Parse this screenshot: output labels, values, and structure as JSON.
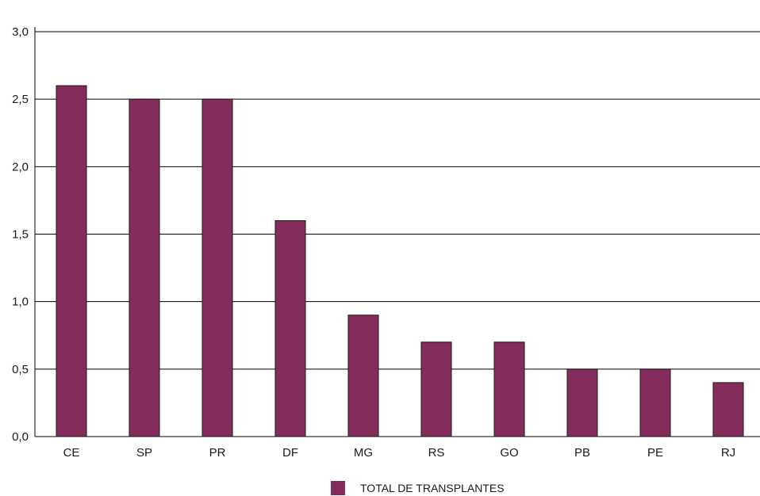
{
  "chart_data": {
    "type": "bar",
    "categories": [
      "CE",
      "SP",
      "PR",
      "DF",
      "MG",
      "RS",
      "GO",
      "PB",
      "PE",
      "RJ"
    ],
    "series": [
      {
        "name": "TOTAL DE TRANSPLANTES",
        "values": [
          2.6,
          2.5,
          2.5,
          1.6,
          0.9,
          0.7,
          0.7,
          0.5,
          0.5,
          0.4
        ]
      }
    ],
    "yticks": [
      {
        "value": 0.0,
        "label": "0,0"
      },
      {
        "value": 0.5,
        "label": "0,5"
      },
      {
        "value": 1.0,
        "label": "1,0"
      },
      {
        "value": 1.5,
        "label": "1,5"
      },
      {
        "value": 2.0,
        "label": "2,0"
      },
      {
        "value": 2.5,
        "label": "2,5"
      },
      {
        "value": 3.0,
        "label": "3,0"
      }
    ],
    "ylim": [
      0,
      3.0
    ],
    "grid": true,
    "legend_position": "bottom-center",
    "colors": {
      "bar": "#842c5c",
      "bar_stroke": "#1a1a1a",
      "grid": "#000000"
    }
  }
}
